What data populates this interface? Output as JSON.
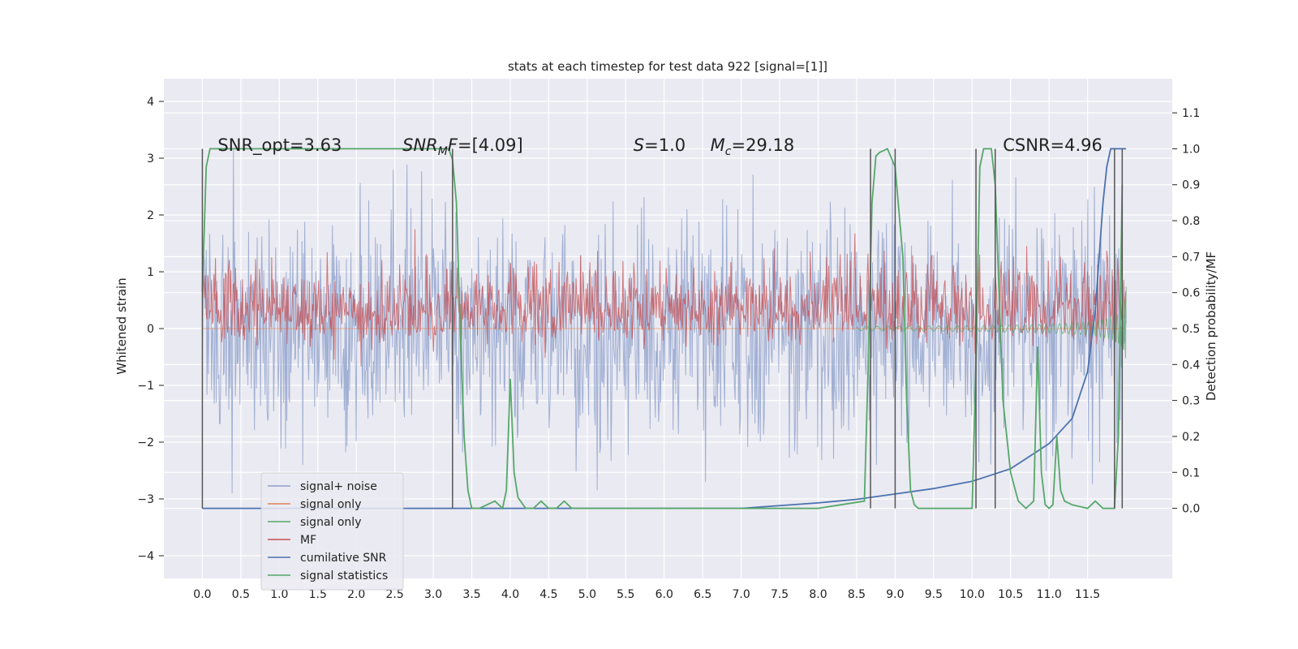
{
  "chart_data": {
    "type": "line",
    "title": "stats at each timestep for test data 922 [signal=[1]]",
    "ylabel_left": "Whitened strain",
    "ylabel_right": "Detection probability/MF",
    "xlim": [
      -0.5,
      12.6
    ],
    "ylim_left": [
      -4.4,
      4.4
    ],
    "ylim_right": [
      -0.195,
      1.195
    ],
    "x_ticks": [
      "0.0",
      "0.5",
      "1.0",
      "1.5",
      "2.0",
      "2.5",
      "3.0",
      "3.5",
      "4.0",
      "4.5",
      "5.0",
      "5.5",
      "6.0",
      "6.5",
      "7.0",
      "7.5",
      "8.0",
      "8.5",
      "9.0",
      "9.5",
      "10.0",
      "10.5",
      "11.0",
      "11.5"
    ],
    "y_ticks_left": [
      "−4",
      "−3",
      "−2",
      "−1",
      "0",
      "1",
      "2",
      "3",
      "4"
    ],
    "y_ticks_right": [
      "0.0",
      "0.1",
      "0.2",
      "0.3",
      "0.4",
      "0.5",
      "0.6",
      "0.7",
      "0.8",
      "0.9",
      "1.0",
      "1.1"
    ],
    "grid": true,
    "legend_placement": "lower-left",
    "annotations": [
      {
        "text": "SNR_opt=3.63",
        "x": 0.2,
        "y": 3.2
      },
      {
        "text": "SNR_MF=[4.09]",
        "x": 2.6,
        "y": 3.2
      },
      {
        "text": "S=1.0",
        "x": 5.6,
        "y": 3.2
      },
      {
        "text": "M_c=29.18",
        "x": 6.6,
        "y": 3.2
      },
      {
        "text": "CSNR=4.96",
        "x": 10.4,
        "y": 3.2
      }
    ],
    "series": [
      {
        "name": "signal+ noise",
        "color": "#8da0cb",
        "axis": "left",
        "x_range": [
          0.0,
          12.0
        ],
        "amplitude_std": 1.0,
        "points": 1400
      },
      {
        "name": "signal only",
        "color": "#dd8452",
        "axis": "left",
        "values": "near zero"
      },
      {
        "name": "signal only",
        "color": "#55a868",
        "axis": "left",
        "x_range": [
          8.5,
          12.0
        ],
        "description_free": true,
        "max_amplitude": 1.2
      },
      {
        "name": "MF",
        "color": "#c44e52",
        "axis": "right",
        "x_range": [
          0.0,
          12.0
        ],
        "baseline": 0.55,
        "spread": 0.07
      },
      {
        "name": "cumilative SNR",
        "color": "#4c72b0",
        "axis": "right",
        "x": [
          0.0,
          6.0,
          7.0,
          8.0,
          8.5,
          9.0,
          9.5,
          10.0,
          10.5,
          11.0,
          11.3,
          11.5,
          11.6,
          11.65,
          11.7,
          11.75,
          11.8,
          11.9,
          12.0
        ],
        "values": [
          0.0,
          0.0,
          0.0,
          0.015,
          0.025,
          0.04,
          0.055,
          0.075,
          0.11,
          0.18,
          0.25,
          0.38,
          0.55,
          0.7,
          0.85,
          0.95,
          1.0,
          1.0,
          1.0
        ]
      },
      {
        "name": "signal statistics",
        "color": "#55a868",
        "axis": "right",
        "x": [
          0.0,
          0.05,
          0.1,
          0.2,
          0.5,
          1.0,
          2.0,
          3.0,
          3.2,
          3.25,
          3.3,
          3.35,
          3.4,
          3.45,
          3.5,
          3.6,
          3.8,
          3.9,
          3.95,
          4.0,
          4.05,
          4.1,
          4.2,
          4.3,
          4.4,
          4.5,
          4.6,
          4.7,
          4.8,
          5.0,
          6.0,
          7.0,
          8.0,
          8.6,
          8.65,
          8.7,
          8.75,
          8.8,
          8.9,
          9.0,
          9.1,
          9.15,
          9.2,
          9.25,
          9.3,
          9.4,
          10.0,
          10.05,
          10.1,
          10.15,
          10.2,
          10.25,
          10.3,
          10.35,
          10.4,
          10.5,
          10.6,
          10.7,
          10.8,
          10.85,
          10.9,
          10.95,
          11.0,
          11.05,
          11.1,
          11.15,
          11.2,
          11.3,
          11.5,
          11.6,
          11.7,
          11.8,
          11.85,
          11.9,
          11.95
        ],
        "values": [
          0.6,
          0.95,
          1.0,
          1.0,
          1.0,
          1.0,
          1.0,
          1.0,
          1.0,
          0.97,
          0.85,
          0.5,
          0.2,
          0.05,
          0.0,
          0.0,
          0.02,
          0.0,
          0.05,
          0.36,
          0.1,
          0.03,
          0.0,
          0.0,
          0.02,
          0.0,
          0.0,
          0.02,
          0.0,
          0.0,
          0.0,
          0.0,
          0.0,
          0.02,
          0.4,
          0.85,
          0.98,
          0.99,
          1.0,
          0.95,
          0.7,
          0.3,
          0.05,
          0.01,
          0.0,
          0.0,
          0.0,
          0.4,
          0.95,
          1.0,
          1.0,
          1.0,
          0.9,
          0.6,
          0.3,
          0.1,
          0.02,
          0.0,
          0.02,
          0.45,
          0.1,
          0.01,
          0.0,
          0.01,
          0.2,
          0.05,
          0.02,
          0.01,
          0.0,
          0.02,
          0.0,
          0.0,
          0.0,
          0.2,
          0.9
        ]
      }
    ],
    "vlines_x": [
      0.0,
      3.25,
      8.68,
      9.0,
      10.05,
      10.3,
      11.85,
      11.95
    ]
  },
  "legend_entries": [
    "signal+ noise",
    "signal only",
    "signal only",
    "MF",
    "cumilative SNR",
    "signal statistics"
  ]
}
